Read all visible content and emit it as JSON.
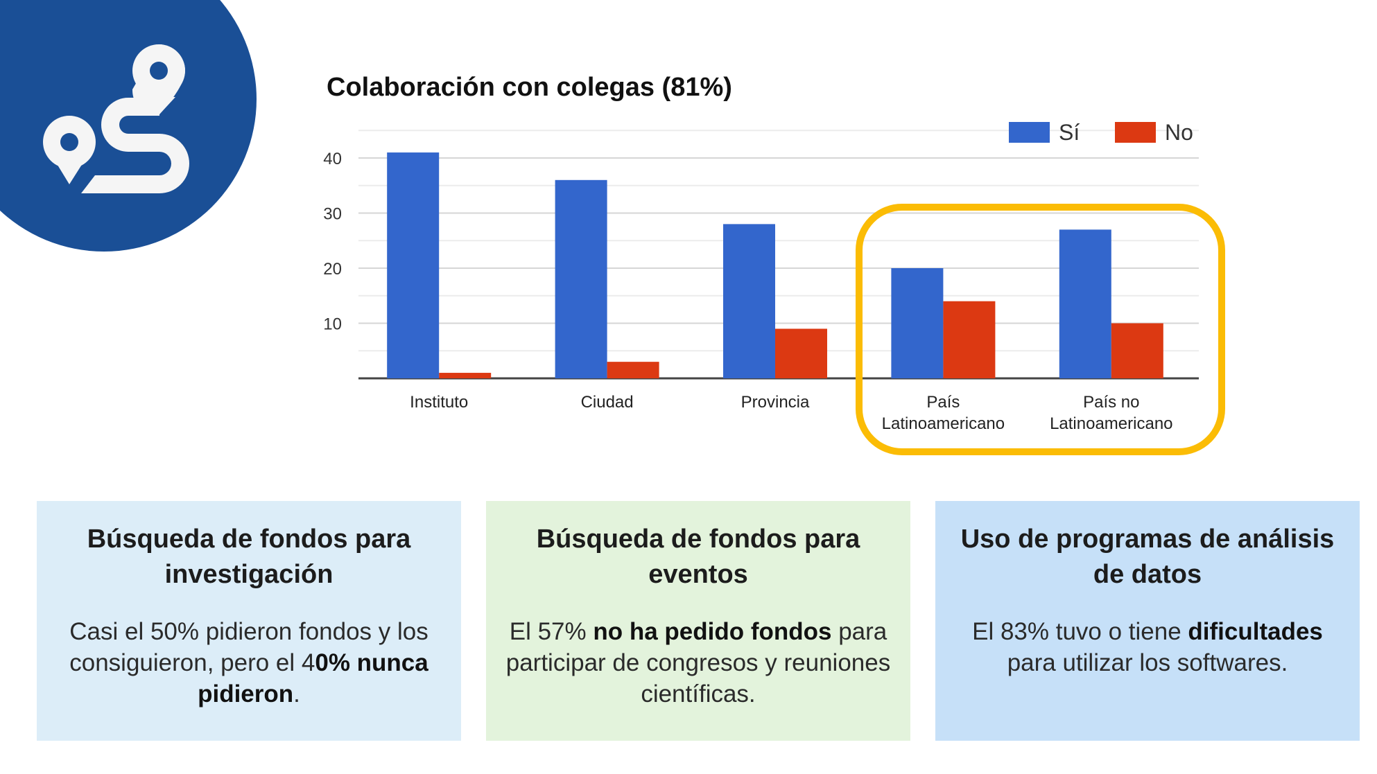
{
  "logo": {
    "icon": "route-map-pins-icon",
    "color": "#1a4f96"
  },
  "chart_data": {
    "type": "bar",
    "title": "Colaboración con colegas (81%)",
    "categories": [
      [
        "Instituto"
      ],
      [
        "Ciudad"
      ],
      [
        "Provincia"
      ],
      [
        "País",
        "Latinoamericano"
      ],
      [
        "País no",
        "Latinoamericano"
      ]
    ],
    "series": [
      {
        "name": "Sí",
        "color": "#3366cc",
        "values": [
          41,
          36,
          28,
          20,
          27
        ]
      },
      {
        "name": "No",
        "color": "#dc3912",
        "values": [
          1,
          3,
          9,
          14,
          10
        ]
      }
    ],
    "yticks": [
      "10",
      "20",
      "30",
      "40"
    ],
    "ytick_values": [
      10,
      20,
      30,
      40
    ],
    "ylim": [
      0,
      45
    ],
    "grid": true,
    "legend": "top-right",
    "highlight": {
      "categories": [
        3,
        4
      ],
      "color": "#fbbc05"
    }
  },
  "cards": [
    {
      "title": "Búsqueda de fondos para investigación",
      "bg": "#dcedf8",
      "body": [
        {
          "t": "Casi el 50% pidieron fondos y los consiguieron, pero el 4"
        },
        {
          "t": "0% nunca pidieron",
          "b": true
        },
        {
          "t": "."
        }
      ]
    },
    {
      "title": "Búsqueda de fondos para eventos",
      "bg": "#e3f3dc",
      "body": [
        {
          "t": "El 57% "
        },
        {
          "t": "no ha pedido fondos",
          "b": true
        },
        {
          "t": " para participar de congresos y reuniones científicas."
        }
      ]
    },
    {
      "title": "Uso de programas de análisis de datos",
      "bg": "#c6e0f8",
      "body": [
        {
          "t": "El 83% tuvo o tiene "
        },
        {
          "t": "dificultades",
          "b": true
        },
        {
          "t": " para utilizar los softwares."
        }
      ]
    }
  ]
}
